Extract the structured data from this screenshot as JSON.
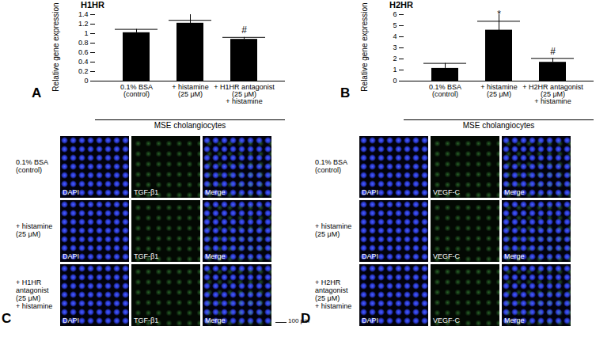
{
  "chart_data": [
    {
      "type": "bar",
      "panel": "A",
      "title": "H1HR",
      "y_label": "Relative gene expression",
      "categories": [
        "0.1% BSA\n(control)",
        "+ histamine\n(25 μM)",
        "+ H1HR antagonist\n(25 μM)\n+ histamine"
      ],
      "values": [
        1.02,
        1.22,
        0.88
      ],
      "errors": [
        0.07,
        0.06,
        0.04
      ],
      "color": "#000000",
      "ylim": [
        0,
        1.4
      ],
      "yticks": [
        0,
        0.2,
        0.4,
        0.6,
        0.8,
        1,
        1.2,
        1.4
      ],
      "annotations": [
        {
          "category": "+ H1HR antagonist\n(25 μM)\n+ histamine",
          "text": "#"
        }
      ],
      "group_label": "MSE cholangiocytes"
    },
    {
      "type": "bar",
      "panel": "B",
      "title": "H2HR",
      "y_label": "Relative gene expression",
      "categories": [
        "0.1% BSA\n(control)",
        "+ histamine\n(25 μM)",
        "+ H2HR antagonist\n(25 μM)\n+ histamine"
      ],
      "values": [
        1.15,
        4.6,
        1.7
      ],
      "errors": [
        0.45,
        0.8,
        0.35
      ],
      "color": "#000000",
      "ylim": [
        0,
        6
      ],
      "yticks": [
        0,
        1,
        2,
        3,
        4,
        5,
        6
      ],
      "annotations": [
        {
          "category": "+ histamine\n(25 μM)",
          "text": "*"
        },
        {
          "category": "+ H2HR antagonist\n(25 μM)\n+ histamine",
          "text": "#"
        }
      ],
      "group_label": "MSE cholangiocytes"
    }
  ],
  "image_panels": [
    {
      "panel": "C",
      "columns": [
        "DAPI",
        "TGF-β1",
        "Merge"
      ],
      "rows": [
        "0.1% BSA\n(control)",
        "+ histamine\n(25 μM)",
        "+ H1HR\nantagonist\n(25 μM)\n+ histamine"
      ]
    },
    {
      "panel": "D",
      "columns": [
        "DAPI",
        "VEGF-C",
        "Merge"
      ],
      "rows": [
        "0.1% BSA\n(control)",
        "+ histamine\n(25 μM)",
        "+ H2HR\nantagonist\n(25 μM)\n+ histamine"
      ]
    }
  ],
  "scale_bar": "100 μm"
}
